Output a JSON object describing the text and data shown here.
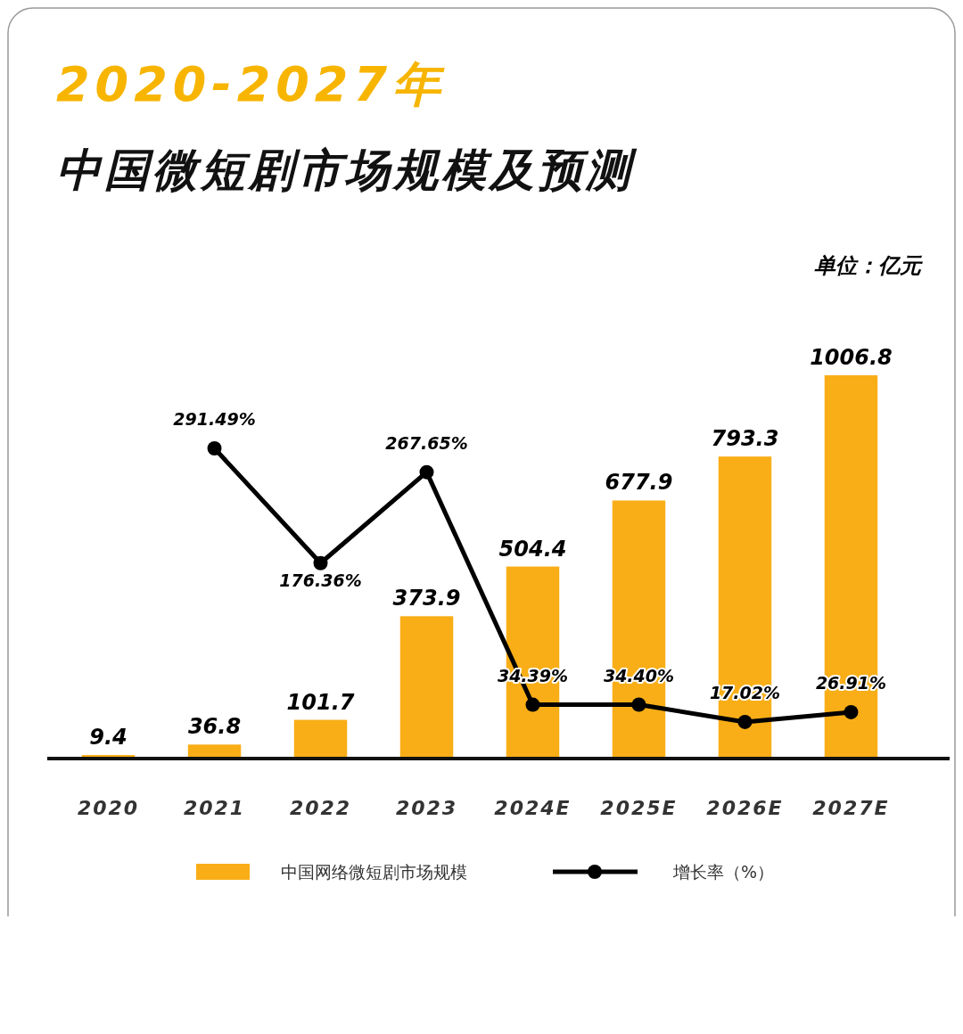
{
  "chart_data": {
    "type": "bar",
    "title": "2020-2027年",
    "subtitle": "中国微短剧市场规模及预测",
    "annotations": [
      "单位：亿元"
    ],
    "categories": [
      "2020",
      "2021",
      "2022",
      "2023",
      "2024E",
      "2025E",
      "2026E",
      "2027E"
    ],
    "tick_labels": "x",
    "legend": "bottom",
    "series": [
      {
        "name": "中国网络微短剧市场规模",
        "color": "#f9ae17",
        "values": [
          9.4,
          36.8,
          101.7,
          373.9,
          504.4,
          677.9,
          793.3,
          1006.8
        ],
        "value_labels": [
          "9.4",
          "36.8",
          "101.7",
          "373.9",
          "504.4",
          "677.9",
          "793.3",
          "1006.8"
        ]
      },
      {
        "name": "增长率（%）",
        "type": "line",
        "axis": "y2",
        "color": "#000000",
        "marker": "circle",
        "values": [
          null,
          291.49,
          176.36,
          267.65,
          34.39,
          34.4,
          17.02,
          26.91
        ],
        "value_labels": [
          null,
          "291.49%",
          "176.36%",
          "267.65%",
          "34.39%",
          "34.40%",
          "17.02%",
          "26.91%"
        ]
      }
    ]
  }
}
